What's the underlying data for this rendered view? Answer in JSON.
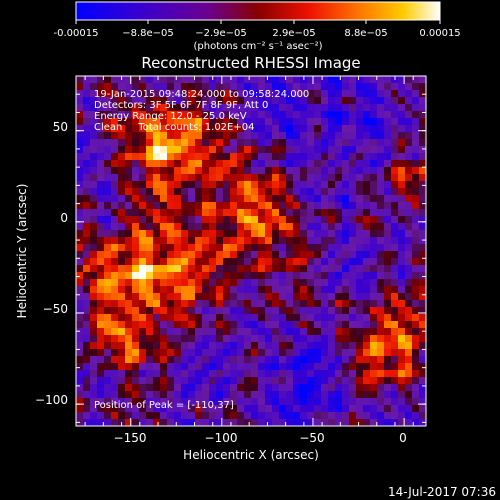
{
  "colorbar": {
    "tick_labels": [
      "-0.00015",
      "−8.8e−05",
      "−2.9e−05",
      "2.9e−05",
      "8.8e−05",
      "0.00015"
    ],
    "range": [
      -0.00015,
      0.00015
    ],
    "unit_label": "(photons cm⁻² s⁻¹ asec⁻²)",
    "colors": [
      "#0000ff",
      "#3300cc",
      "#660099",
      "#990000",
      "#ff2200",
      "#ff7700",
      "#ffcc00",
      "#ffffff"
    ]
  },
  "footer": {
    "timestamp": "14-Jul-2017 07:36"
  },
  "chart_data": {
    "type": "heatmap",
    "title": "Reconstructed RHESSI Image",
    "xlabel": "Heliocentric X (arcsec)",
    "ylabel": "Heliocentric Y (arcsec)",
    "xlim": [
      -180,
      12
    ],
    "ylim": [
      -112,
      80
    ],
    "x_ticks": [
      -150,
      -100,
      -50,
      0
    ],
    "y_ticks": [
      -100,
      -50,
      0,
      50
    ],
    "annotations": [
      "19-Jan-2015 09:48:24.000 to 09:58:24.000",
      "Detectors: 3F 5F 6F 7F 8F 9F, Att 0",
      "Energy Range: 12.0 - 25.0 keV",
      "Clean     Total counts: 1.02E+04"
    ],
    "peak_label": "Position of Peak = [-110,37]",
    "peak_position": [
      -110,
      37
    ],
    "grid": false
  }
}
